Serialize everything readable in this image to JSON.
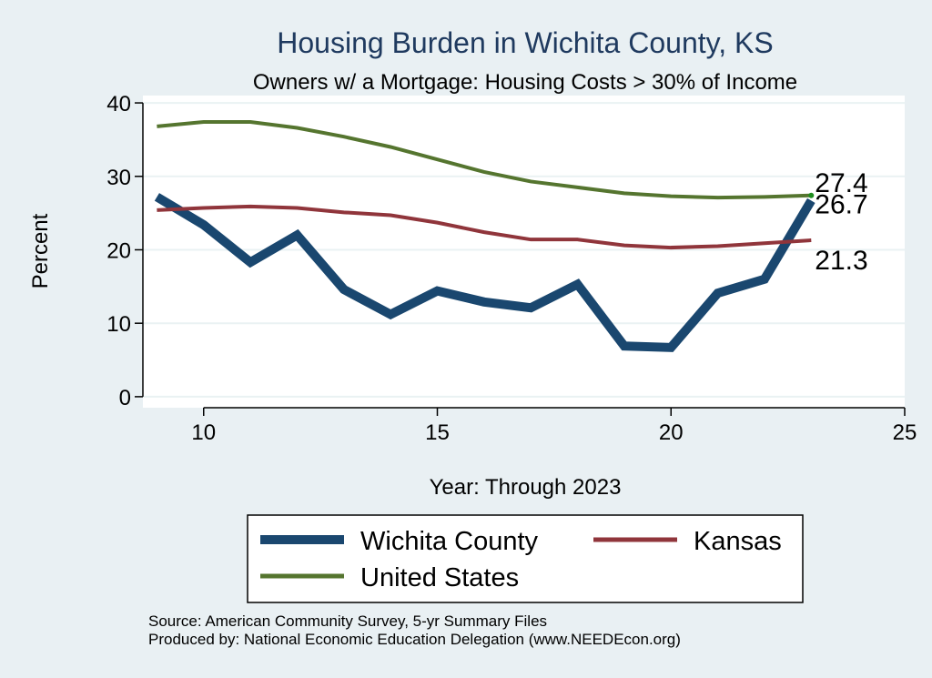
{
  "chart_data": {
    "type": "line",
    "title": "Housing Burden in Wichita County, KS",
    "subtitle": "Owners w/ a Mortgage: Housing Costs > 30% of Income",
    "xlabel": "Year: Through 2023",
    "ylabel": "Percent",
    "xlim": [
      8.7,
      25
    ],
    "ylim": [
      -1.5,
      41
    ],
    "xticks": [
      10,
      15,
      20,
      25
    ],
    "yticks": [
      0,
      10,
      20,
      30,
      40
    ],
    "grid": true,
    "legend_position": "bottom",
    "x": [
      9,
      10,
      11,
      12,
      13,
      14,
      15,
      16,
      17,
      18,
      19,
      20,
      21,
      22,
      23
    ],
    "series": [
      {
        "name": "Wichita County",
        "color": "#1a476f",
        "values": [
          27.2,
          23.4,
          18.3,
          22.0,
          14.6,
          11.2,
          14.4,
          12.9,
          12.1,
          15.3,
          6.9,
          6.7,
          14.1,
          16.0,
          26.7
        ],
        "end_label": "26.7"
      },
      {
        "name": "Kansas",
        "color": "#90353b",
        "values": [
          25.4,
          25.7,
          25.9,
          25.7,
          25.1,
          24.7,
          23.7,
          22.4,
          21.4,
          21.4,
          20.6,
          20.3,
          20.5,
          20.9,
          21.3
        ],
        "end_label": "21.3"
      },
      {
        "name": "United States",
        "color": "#55752f",
        "values": [
          36.8,
          37.4,
          37.4,
          36.6,
          35.4,
          34.0,
          32.3,
          30.6,
          29.3,
          28.5,
          27.7,
          27.3,
          27.1,
          27.2,
          27.4
        ],
        "end_label": "27.4"
      }
    ],
    "source_lines": [
      "Source: American Community Survey, 5-yr Summary Files",
      "Produced by: National Economic Education Delegation (www.NEEDEcon.org)"
    ]
  }
}
